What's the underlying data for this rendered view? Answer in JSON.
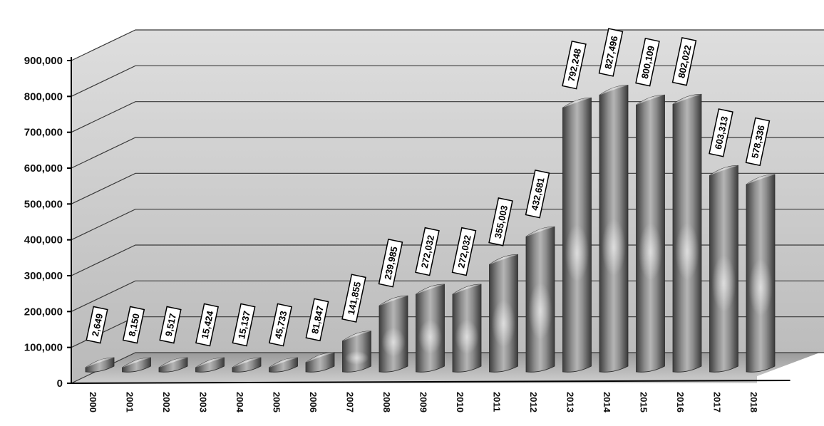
{
  "chart_data": {
    "type": "bar",
    "categories": [
      "2000",
      "2001",
      "2002",
      "2003",
      "2004",
      "2005",
      "2006",
      "2007",
      "2008",
      "2009",
      "2010",
      "2011",
      "2012",
      "2013",
      "2014",
      "2015",
      "2016",
      "2017",
      "2018"
    ],
    "values": [
      2649,
      8150,
      9517,
      15424,
      15137,
      45733,
      81847,
      141855,
      239985,
      272032,
      272032,
      355003,
      432681,
      792248,
      827496,
      800109,
      802022,
      603313,
      578336
    ],
    "data_labels": [
      "2,649",
      "8,150",
      "9,517",
      "15,424",
      "15,137",
      "45,733",
      "81,847",
      "141,855",
      "239,985",
      "272,032",
      "272,032",
      "355,003",
      "432,681",
      "792,248",
      "827,496",
      "800,109",
      "802,022",
      "603,313",
      "578,336"
    ],
    "y_ticks": [
      "0",
      "100,000",
      "200,000",
      "300,000",
      "400,000",
      "500,000",
      "600,000",
      "700,000",
      "800,000",
      "900,000"
    ],
    "ylim": [
      0,
      900000
    ],
    "title": "",
    "xlabel": "",
    "ylabel": "",
    "grid": true,
    "style": "3d-cylinder",
    "colors": {
      "bar": "#6e6e6e",
      "background": "#c9c9c9",
      "grid": "#3a3a3a"
    }
  }
}
